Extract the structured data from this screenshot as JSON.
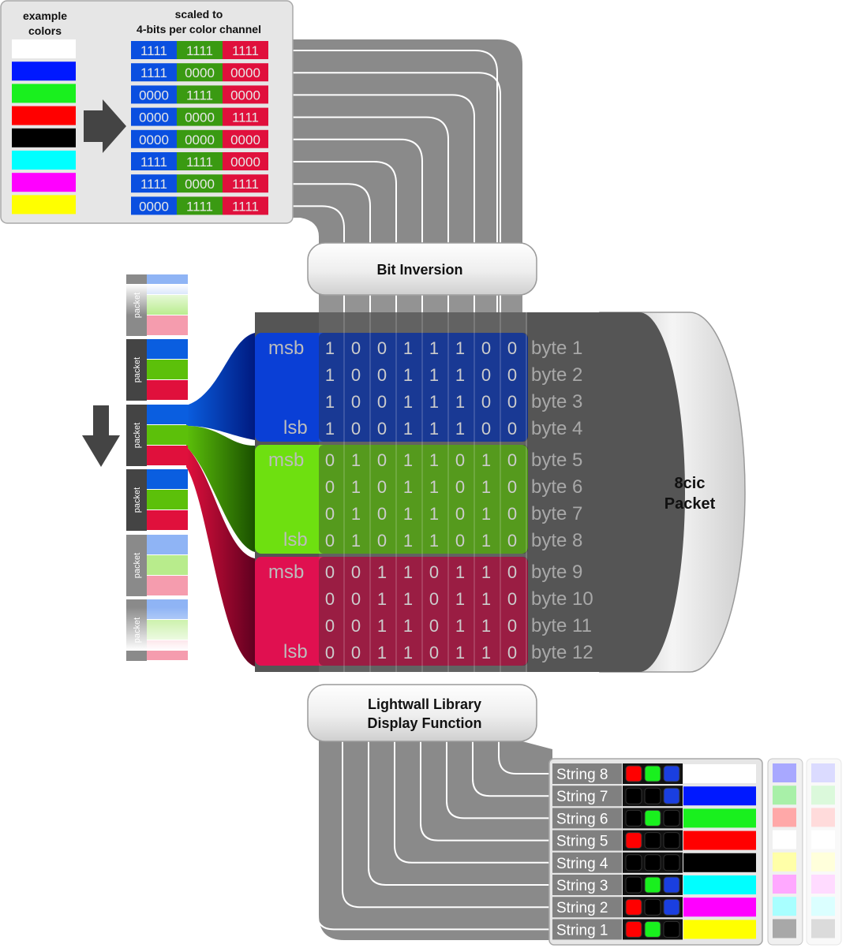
{
  "example_panel": {
    "title_line1": "example",
    "title_line2": "colors"
  },
  "scaled_panel": {
    "title_line1": "scaled to",
    "title_line2": "4-bits per color channel"
  },
  "colors": [
    {
      "swatch": "#ffffff",
      "bits": [
        "1111",
        "1111",
        "1111"
      ]
    },
    {
      "swatch": "#0019ff",
      "bits": [
        "1111",
        "0000",
        "0000"
      ]
    },
    {
      "swatch": "#19f01e",
      "bits": [
        "0000",
        "1111",
        "0000"
      ]
    },
    {
      "swatch": "#ff0000",
      "bits": [
        "0000",
        "0000",
        "1111"
      ]
    },
    {
      "swatch": "#000000",
      "bits": [
        "0000",
        "0000",
        "0000"
      ]
    },
    {
      "swatch": "#00ffff",
      "bits": [
        "1111",
        "1111",
        "0000"
      ]
    },
    {
      "swatch": "#ff00ff",
      "bits": [
        "1111",
        "0000",
        "1111"
      ]
    },
    {
      "swatch": "#ffff00",
      "bits": [
        "0000",
        "1111",
        "1111"
      ]
    }
  ],
  "channel_colors": {
    "blue": "#0a4fe0",
    "green": "#3a9a12",
    "red": "#e0103c"
  },
  "bit_inversion_label": "Bit Inversion",
  "display_function_label_line1": "Lightwall Library",
  "display_function_label_line2": "Display Function",
  "packet_stack_label": "packet",
  "cylinder_label_line1": "8cic",
  "cylinder_label_line2": "Packet",
  "msb_label": "msb",
  "lsb_label": "lsb",
  "byte_groups": [
    {
      "color": "#0a3fd6",
      "rows": [
        {
          "bits": [
            "1",
            "0",
            "0",
            "1",
            "1",
            "1",
            "0",
            "0"
          ],
          "label": "byte 1"
        },
        {
          "bits": [
            "1",
            "0",
            "0",
            "1",
            "1",
            "1",
            "0",
            "0"
          ],
          "label": "byte 2"
        },
        {
          "bits": [
            "1",
            "0",
            "0",
            "1",
            "1",
            "1",
            "0",
            "0"
          ],
          "label": "byte 3"
        },
        {
          "bits": [
            "1",
            "0",
            "0",
            "1",
            "1",
            "1",
            "0",
            "0"
          ],
          "label": "byte 4"
        }
      ]
    },
    {
      "color": "#6ee010",
      "rows": [
        {
          "bits": [
            "0",
            "1",
            "0",
            "1",
            "1",
            "0",
            "1",
            "0"
          ],
          "label": "byte 5"
        },
        {
          "bits": [
            "0",
            "1",
            "0",
            "1",
            "1",
            "0",
            "1",
            "0"
          ],
          "label": "byte 6"
        },
        {
          "bits": [
            "0",
            "1",
            "0",
            "1",
            "1",
            "0",
            "1",
            "0"
          ],
          "label": "byte 7"
        },
        {
          "bits": [
            "0",
            "1",
            "0",
            "1",
            "1",
            "0",
            "1",
            "0"
          ],
          "label": "byte 8"
        }
      ]
    },
    {
      "color": "#e01050",
      "rows": [
        {
          "bits": [
            "0",
            "0",
            "1",
            "1",
            "0",
            "1",
            "1",
            "0"
          ],
          "label": "byte 9"
        },
        {
          "bits": [
            "0",
            "0",
            "1",
            "1",
            "0",
            "1",
            "1",
            "0"
          ],
          "label": "byte 10"
        },
        {
          "bits": [
            "0",
            "0",
            "1",
            "1",
            "0",
            "1",
            "1",
            "0"
          ],
          "label": "byte 11"
        },
        {
          "bits": [
            "0",
            "0",
            "1",
            "1",
            "0",
            "1",
            "1",
            "0"
          ],
          "label": "byte 12"
        }
      ]
    }
  ],
  "strings": [
    {
      "label": "String 8",
      "leds": [
        "#ff0000",
        "#19f01e",
        "#1a3fe0"
      ],
      "color": "#ffffff"
    },
    {
      "label": "String 7",
      "leds": [
        "#000000",
        "#000000",
        "#1a3fe0"
      ],
      "color": "#0019ff"
    },
    {
      "label": "String 6",
      "leds": [
        "#000000",
        "#19f01e",
        "#000000"
      ],
      "color": "#19f01e"
    },
    {
      "label": "String 5",
      "leds": [
        "#ff0000",
        "#000000",
        "#000000"
      ],
      "color": "#ff0000"
    },
    {
      "label": "String 4",
      "leds": [
        "#000000",
        "#000000",
        "#000000"
      ],
      "color": "#000000"
    },
    {
      "label": "String 3",
      "leds": [
        "#000000",
        "#19f01e",
        "#1a3fe0"
      ],
      "color": "#00ffff"
    },
    {
      "label": "String 2",
      "leds": [
        "#ff0000",
        "#000000",
        "#1a3fe0"
      ],
      "color": "#ff00ff"
    },
    {
      "label": "String 1",
      "leds": [
        "#ff0000",
        "#19f01e",
        "#000000"
      ],
      "color": "#ffff00"
    }
  ],
  "ghost_colors": [
    "#9999ff",
    "#99ee99",
    "#ff9999",
    "#ffffff",
    "#ffff99",
    "#ff99ff",
    "#99ffff",
    "#999999"
  ]
}
